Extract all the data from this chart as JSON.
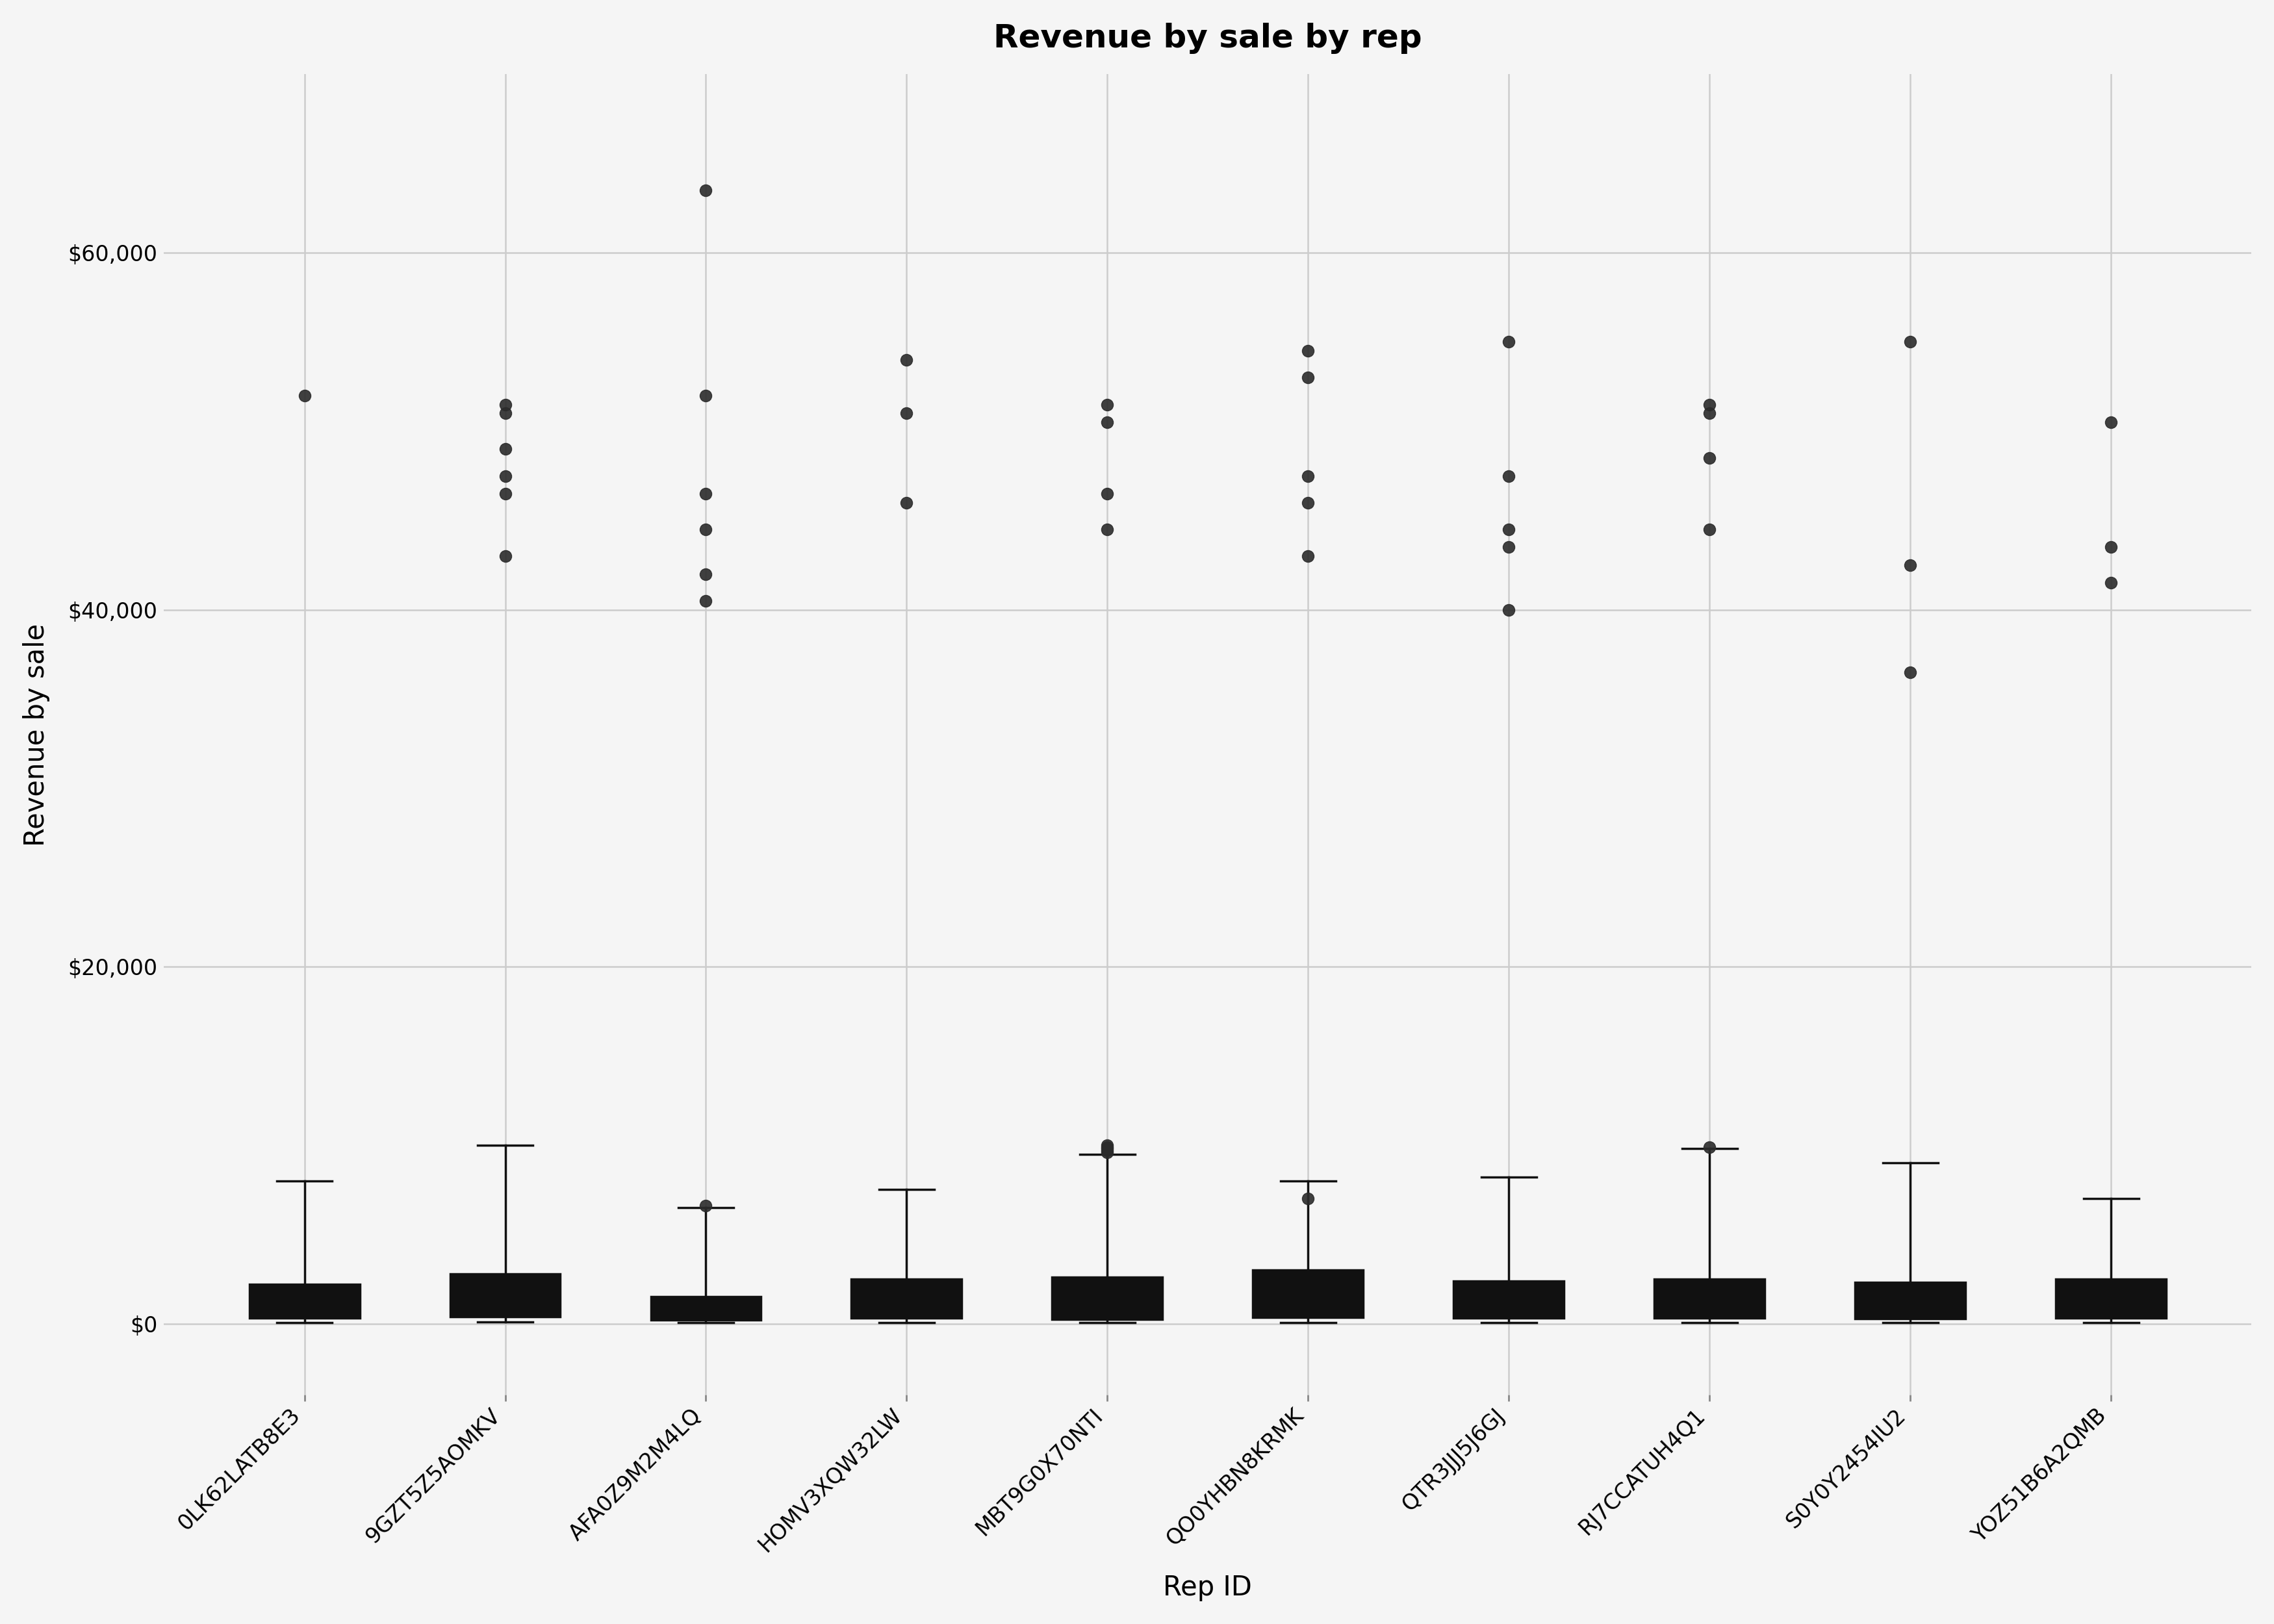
{
  "title": "Revenue by sale by rep",
  "xlabel": "Rep ID",
  "ylabel": "Revenue by sale",
  "title_fontsize": 36,
  "axis_label_fontsize": 30,
  "tick_fontsize": 24,
  "background_color": "#f5f5f5",
  "box_color": "#4a90d9",
  "median_color": "#111111",
  "whisker_color": "#111111",
  "flier_color": "#2b2b2b",
  "grid_color": "#cccccc",
  "ylim": [
    -4000,
    70000
  ],
  "yticks": [
    0,
    20000,
    40000,
    60000
  ],
  "categories": [
    "0LK62LATB8E3",
    "9GZT5Z5AOMKV",
    "AFA0Z9M2M4LQ",
    "HOMV3XQW32LW",
    "MBT9G0X70NTI",
    "QO0YHBN8KRMK",
    "QTR3JJJ5J6GJ",
    "RJ7CCATUH4Q1",
    "S0Y0Y2454IU2",
    "YOZ51B6A2QMB"
  ],
  "box_stats": {
    "0LK62LATB8E3": {
      "q1": 300,
      "median": 600,
      "q3": 2200,
      "whisker_low": 50,
      "whisker_high": 8000,
      "fliers": [
        52000
      ]
    },
    "9GZT5Z5AOMKV": {
      "q1": 400,
      "median": 900,
      "q3": 2800,
      "whisker_low": 80,
      "whisker_high": 10000,
      "fliers": [
        43000,
        46500,
        47500,
        49000,
        51000,
        51500
      ]
    },
    "AFA0Z9M2M4LQ": {
      "q1": 200,
      "median": 400,
      "q3": 1500,
      "whisker_low": 50,
      "whisker_high": 6500,
      "fliers": [
        6600,
        40500,
        42000,
        44500,
        46500,
        52000,
        63500
      ]
    },
    "HOMV3XQW32LW": {
      "q1": 300,
      "median": 700,
      "q3": 2500,
      "whisker_low": 60,
      "whisker_high": 7500,
      "fliers": [
        46000,
        51000,
        54000
      ]
    },
    "MBT9G0X70NTI": {
      "q1": 250,
      "median": 600,
      "q3": 2600,
      "whisker_low": 50,
      "whisker_high": 9500,
      "fliers": [
        9600,
        9700,
        9800,
        9900,
        10000,
        44500,
        46500,
        50500,
        51500
      ]
    },
    "QO0YHBN8KRMK": {
      "q1": 350,
      "median": 800,
      "q3": 3000,
      "whisker_low": 70,
      "whisker_high": 8000,
      "fliers": [
        7000,
        43000,
        46000,
        47500,
        53000,
        54500
      ]
    },
    "QTR3JJJ5J6GJ": {
      "q1": 300,
      "median": 700,
      "q3": 2400,
      "whisker_low": 50,
      "whisker_high": 8200,
      "fliers": [
        40000,
        43500,
        44500,
        47500,
        55000
      ]
    },
    "RJ7CCATUH4Q1": {
      "q1": 300,
      "median": 700,
      "q3": 2500,
      "whisker_low": 60,
      "whisker_high": 9800,
      "fliers": [
        9900,
        44500,
        48500,
        51000,
        51500
      ]
    },
    "S0Y0Y2454IU2": {
      "q1": 280,
      "median": 650,
      "q3": 2300,
      "whisker_low": 50,
      "whisker_high": 9000,
      "fliers": [
        36500,
        42500,
        55000
      ]
    },
    "YOZ51B6A2QMB": {
      "q1": 300,
      "median": 650,
      "q3": 2500,
      "whisker_low": 50,
      "whisker_high": 7000,
      "fliers": [
        41500,
        43500,
        50500
      ]
    }
  }
}
